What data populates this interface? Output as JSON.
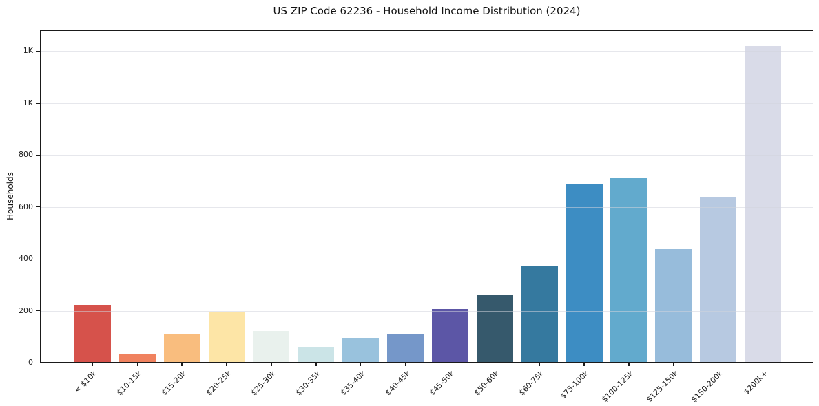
{
  "page": {
    "background": "#ffffff"
  },
  "chart_data": {
    "type": "bar",
    "title": "US ZIP Code 62236 - Household Income Distribution (2024)",
    "xlabel": "",
    "ylabel": "Households",
    "categories": [
      "< $10k",
      "$10-15k",
      "$15-20k",
      "$20-25k",
      "$25-30k",
      "$30-35k",
      "$35-40k",
      "$40-45k",
      "$45-50k",
      "$50-60k",
      "$60-75k",
      "$75-100k",
      "$100-125k",
      "$125-150k",
      "$150-200k",
      "$200k+"
    ],
    "values": [
      223,
      32,
      109,
      196,
      122,
      62,
      96,
      109,
      208,
      261,
      374,
      688,
      714,
      438,
      635,
      1219
    ],
    "bar_colors": [
      "#d6524b",
      "#f0825f",
      "#f9bd7e",
      "#fde5a6",
      "#e9f1ed",
      "#cbe4e7",
      "#99c2dd",
      "#7597c9",
      "#5c56a6",
      "#36596c",
      "#35799f",
      "#3d8dc3",
      "#62aacd",
      "#97bcdb",
      "#b7c9e1",
      "#d9dbe8"
    ],
    "ylim": [
      0,
      1280
    ],
    "yticks": [
      {
        "value": 0,
        "label": "0"
      },
      {
        "value": 200,
        "label": "200"
      },
      {
        "value": 400,
        "label": "400"
      },
      {
        "value": 600,
        "label": "600"
      },
      {
        "value": 800,
        "label": "800"
      },
      {
        "value": 1000,
        "label": "1K"
      },
      {
        "value": 1200,
        "label": "1K"
      }
    ],
    "grid": "horizontal gridlines at y ticks, drawn above bars",
    "legend": "none",
    "colors": {
      "axis": "#1a1a1a",
      "grid": "rgba(210,212,221,0.55)",
      "text": "#1a1a1a"
    }
  }
}
